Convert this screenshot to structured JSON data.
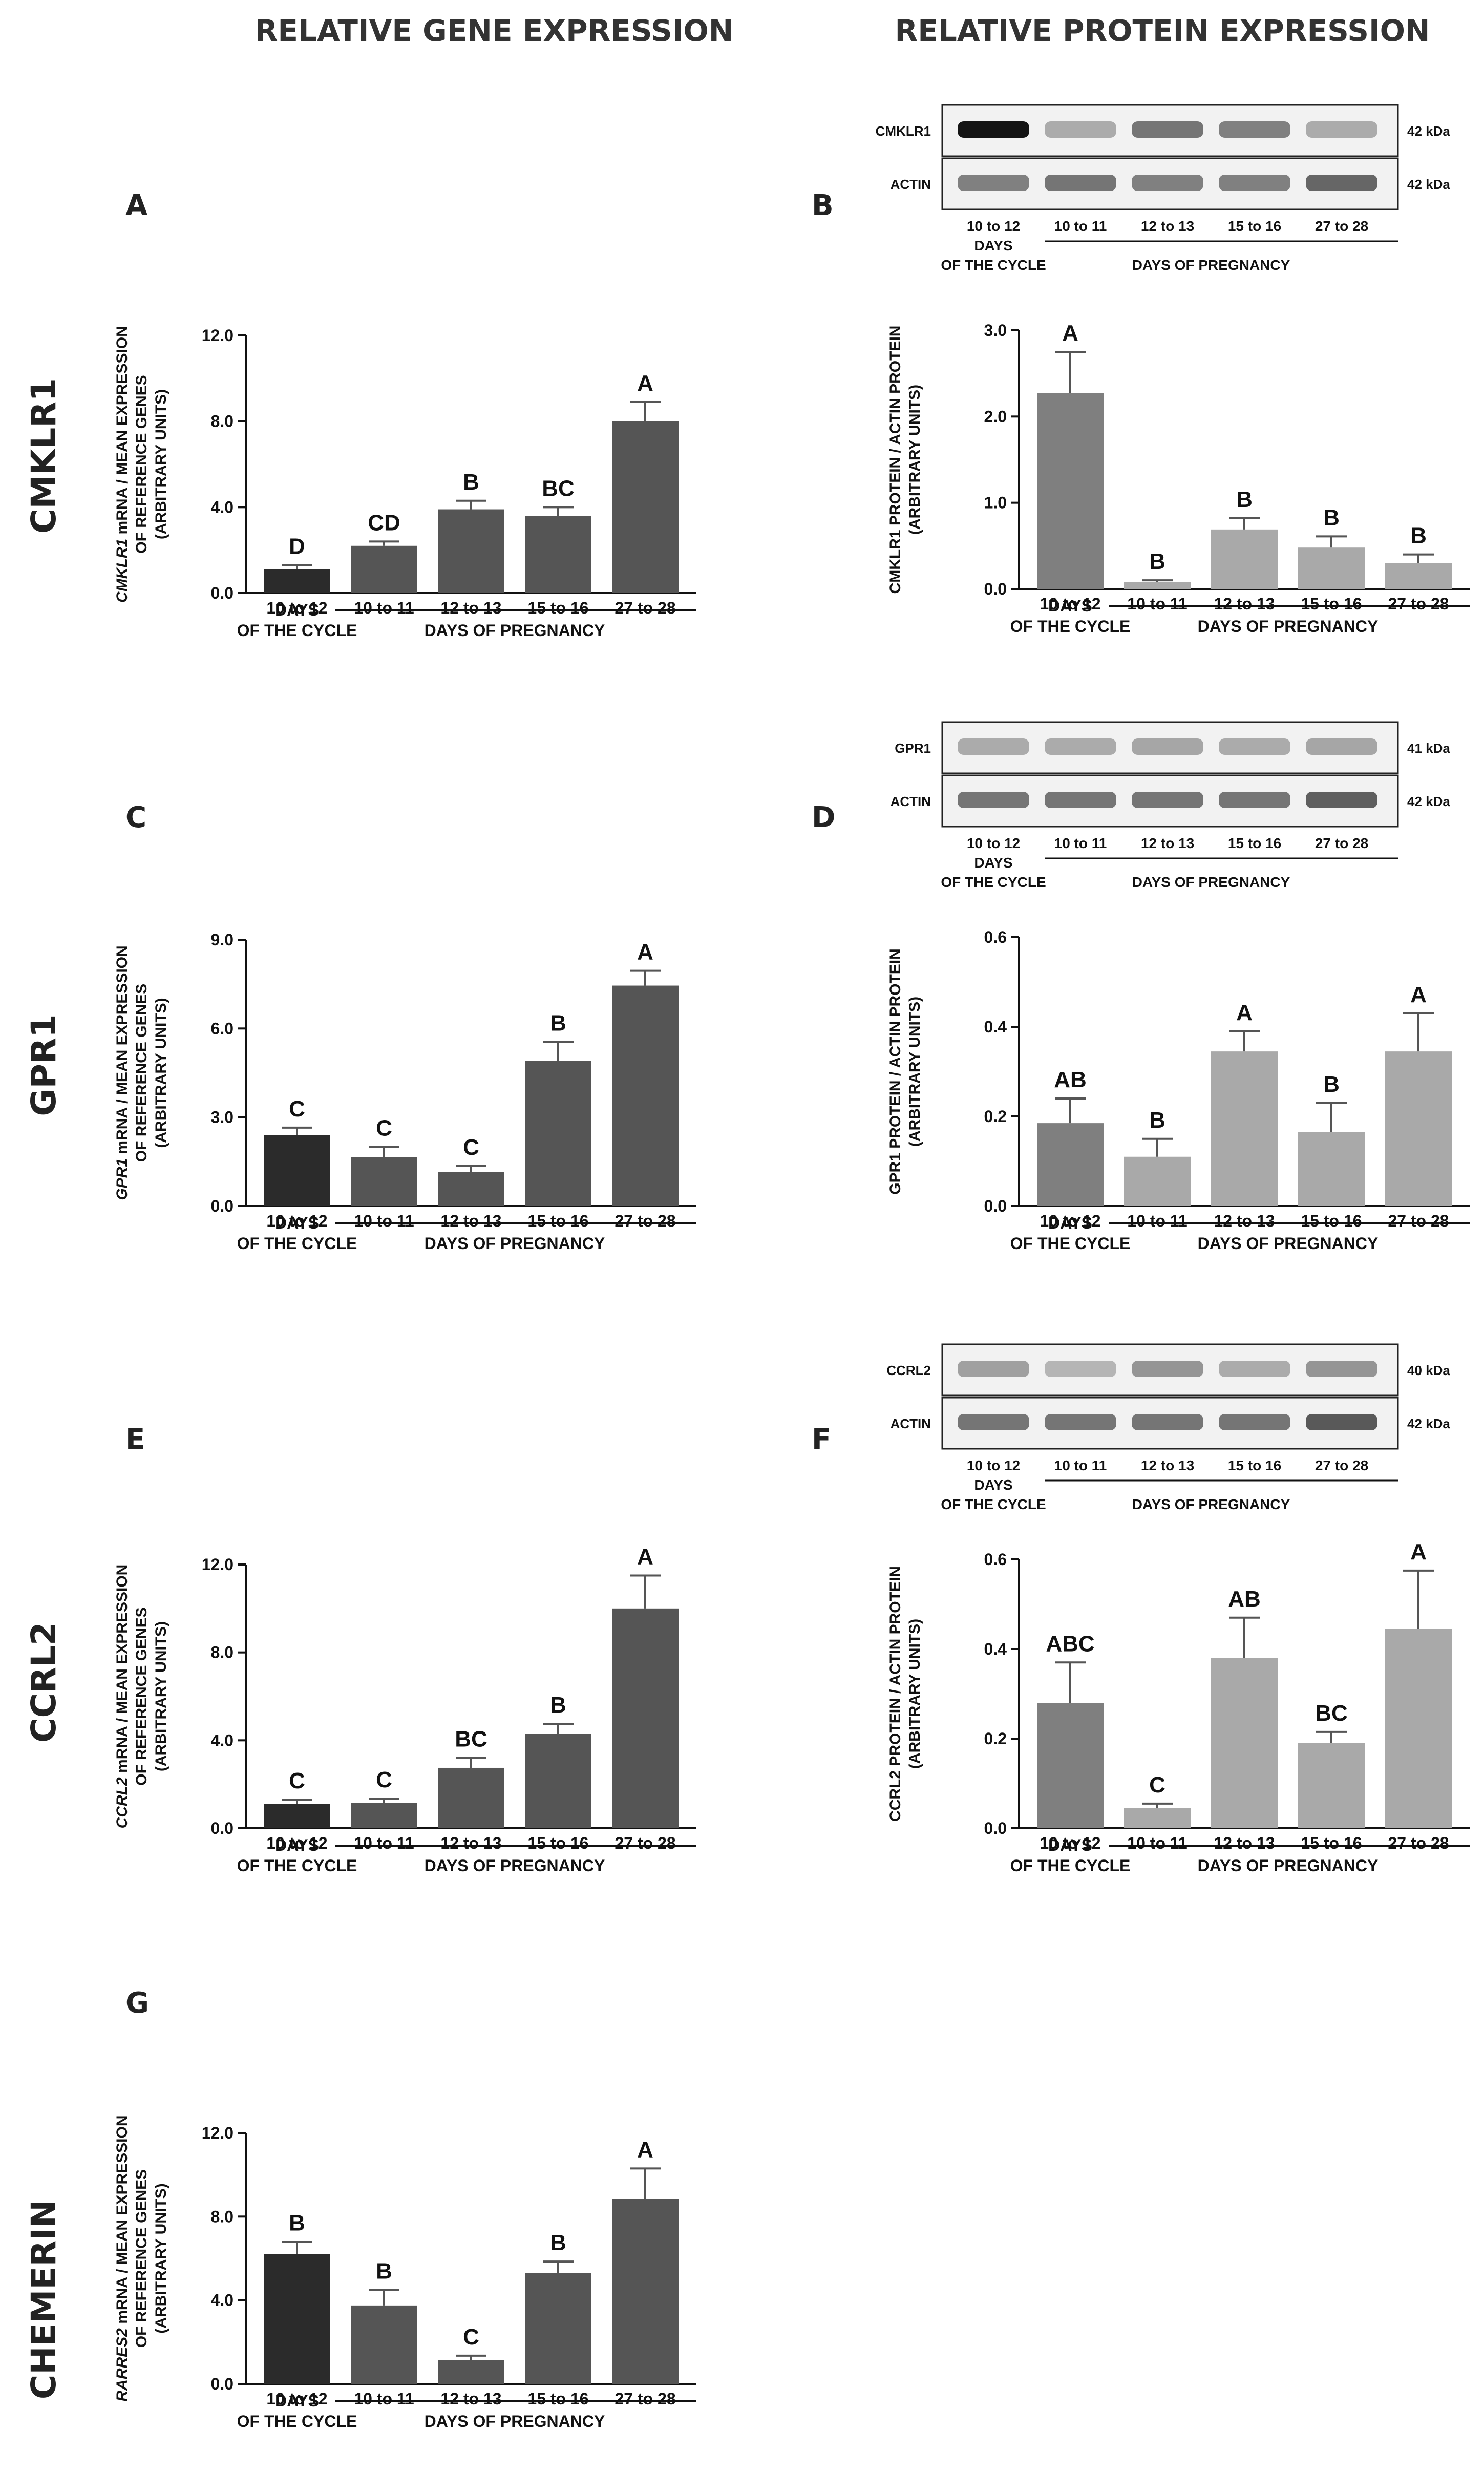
{
  "column_headers": [
    "RELATIVE GENE EXPRESSION",
    "RELATIVE PROTEIN EXPRESSION"
  ],
  "row_headers": [
    "CMKLR1",
    "GPR1",
    "CCRL2",
    "CHEMERIN"
  ],
  "x_groups": {
    "cycle_label_1": "DAYS",
    "cycle_label_2": "OF THE CYCLE",
    "pregnancy_label": "DAYS OF PREGNANCY"
  },
  "chart_data": [
    {
      "panel": "A",
      "type": "bar",
      "categories": [
        "10 to 12",
        "10 to 11",
        "12 to 13",
        "15 to 16",
        "27 to 28"
      ],
      "values": [
        1.1,
        2.2,
        3.9,
        3.6,
        8.0
      ],
      "errors": [
        0.2,
        0.2,
        0.4,
        0.4,
        0.9
      ],
      "sig_labels": [
        "D",
        "CD",
        "B",
        "BC",
        "A"
      ],
      "colors": [
        "#2b2b2b",
        "#555555",
        "#555555",
        "#555555",
        "#555555"
      ],
      "ylabel_italic": "CMKLR1",
      "ylabel_rest": " mRNA / MEAN EXPRESSION",
      "ylabel_line2": "OF REFERENCE GENES",
      "ylabel_line3": "(ARBITRARY UNITS)",
      "ylim": [
        0,
        12
      ],
      "yticks": [
        0,
        4,
        8,
        12
      ],
      "ytick_labels": [
        "0.0",
        "4.0",
        "8.0",
        "12.0"
      ]
    },
    {
      "panel": "B",
      "type": "bar",
      "categories": [
        "10 to 12",
        "10 to 11",
        "12 to 13",
        "15 to 16",
        "27 to 28"
      ],
      "values": [
        2.27,
        0.08,
        0.69,
        0.48,
        0.3
      ],
      "errors": [
        0.48,
        0.02,
        0.13,
        0.13,
        0.1
      ],
      "sig_labels": [
        "A",
        "B",
        "B",
        "B",
        "B"
      ],
      "colors": [
        "#7f7f7f",
        "#a9a9a9",
        "#a9a9a9",
        "#a9a9a9",
        "#a9a9a9"
      ],
      "ylabel_italic": "",
      "ylabel_rest": "CMKLR1 PROTEIN / ACTIN PROTEIN",
      "ylabel_line2": "(ARBITRARY UNITS)",
      "ylabel_line3": "",
      "ylim": [
        0,
        3
      ],
      "yticks": [
        0,
        1,
        2,
        3
      ],
      "ytick_labels": [
        "0.0",
        "1.0",
        "2.0",
        "3.0"
      ],
      "blot": {
        "target_label": "CMKLR1",
        "target_kda": "42 kDa",
        "actin_label": "ACTIN",
        "actin_kda": "42 kDa",
        "target_intensity": [
          1.0,
          0.3,
          0.55,
          0.5,
          0.3
        ],
        "actin_intensity": [
          0.5,
          0.55,
          0.5,
          0.5,
          0.62
        ]
      }
    },
    {
      "panel": "C",
      "type": "bar",
      "categories": [
        "10 to 12",
        "10 to 11",
        "12 to 13",
        "15 to 16",
        "27 to 28"
      ],
      "values": [
        2.4,
        1.65,
        1.15,
        4.9,
        7.45
      ],
      "errors": [
        0.25,
        0.35,
        0.2,
        0.65,
        0.5
      ],
      "sig_labels": [
        "C",
        "C",
        "C",
        "B",
        "A"
      ],
      "colors": [
        "#2b2b2b",
        "#555555",
        "#555555",
        "#555555",
        "#555555"
      ],
      "ylabel_italic": "GPR1",
      "ylabel_rest": " mRNA / MEAN EXPRESSION",
      "ylabel_line2": "OF REFERENCE GENES",
      "ylabel_line3": "(ARBITRARY UNITS)",
      "ylim": [
        0,
        9
      ],
      "yticks": [
        0,
        3,
        6,
        9
      ],
      "ytick_labels": [
        "0.0",
        "3.0",
        "6.0",
        "9.0"
      ]
    },
    {
      "panel": "D",
      "type": "bar",
      "categories": [
        "10 to 12",
        "10 to 11",
        "12 to 13",
        "15 to 16",
        "27 to 28"
      ],
      "values": [
        0.185,
        0.11,
        0.345,
        0.165,
        0.345
      ],
      "errors": [
        0.055,
        0.04,
        0.045,
        0.065,
        0.085
      ],
      "sig_labels": [
        "AB",
        "B",
        "A",
        "B",
        "A"
      ],
      "colors": [
        "#7f7f7f",
        "#a9a9a9",
        "#a9a9a9",
        "#a9a9a9",
        "#a9a9a9"
      ],
      "ylabel_italic": "",
      "ylabel_rest": "GPR1 PROTEIN / ACTIN PROTEIN",
      "ylabel_line2": "(ARBITRARY UNITS)",
      "ylabel_line3": "",
      "ylim": [
        0,
        0.6
      ],
      "yticks": [
        0,
        0.2,
        0.4,
        0.6
      ],
      "ytick_labels": [
        "0.0",
        "0.2",
        "0.4",
        "0.6"
      ],
      "blot": {
        "target_label": "GPR1",
        "target_kda": "41 kDa",
        "actin_label": "ACTIN",
        "actin_kda": "42 kDa",
        "target_intensity": [
          0.3,
          0.3,
          0.32,
          0.3,
          0.32
        ],
        "actin_intensity": [
          0.55,
          0.55,
          0.55,
          0.55,
          0.65
        ]
      }
    },
    {
      "panel": "E",
      "type": "bar",
      "categories": [
        "10 to 12",
        "10 to 11",
        "12 to 13",
        "15 to 16",
        "27 to 28"
      ],
      "values": [
        1.1,
        1.15,
        2.75,
        4.3,
        10.0
      ],
      "errors": [
        0.2,
        0.2,
        0.45,
        0.45,
        1.5
      ],
      "sig_labels": [
        "C",
        "C",
        "BC",
        "B",
        "A"
      ],
      "colors": [
        "#2b2b2b",
        "#555555",
        "#555555",
        "#555555",
        "#555555"
      ],
      "ylabel_italic": "CCRL2",
      "ylabel_rest": " mRNA / MEAN EXPRESSION",
      "ylabel_line2": "OF REFERENCE GENES",
      "ylabel_line3": "(ARBITRARY UNITS)",
      "ylim": [
        0,
        12
      ],
      "yticks": [
        0,
        4,
        8,
        12
      ],
      "ytick_labels": [
        "0.0",
        "4.0",
        "8.0",
        "12.0"
      ]
    },
    {
      "panel": "F",
      "type": "bar",
      "categories": [
        "10 to 12",
        "10 to 11",
        "12 to 13",
        "15 to 16",
        "27 to 28"
      ],
      "values": [
        0.28,
        0.045,
        0.38,
        0.19,
        0.445
      ],
      "errors": [
        0.09,
        0.01,
        0.09,
        0.025,
        0.13
      ],
      "sig_labels": [
        "ABC",
        "C",
        "AB",
        "BC",
        "A"
      ],
      "colors": [
        "#7f7f7f",
        "#a9a9a9",
        "#a9a9a9",
        "#a9a9a9",
        "#a9a9a9"
      ],
      "ylabel_italic": "",
      "ylabel_rest": "CCRL2 PROTEIN / ACTIN PROTEIN",
      "ylabel_line2": "(ARBITRARY UNITS)",
      "ylabel_line3": "",
      "ylim": [
        0,
        0.6
      ],
      "yticks": [
        0,
        0.2,
        0.4,
        0.6
      ],
      "ytick_labels": [
        "0.0",
        "0.2",
        "0.4",
        "0.6"
      ],
      "blot": {
        "target_label": "CCRL2",
        "target_kda": "40 kDa",
        "actin_label": "ACTIN",
        "actin_kda": "42 kDa",
        "target_intensity": [
          0.35,
          0.25,
          0.4,
          0.3,
          0.4
        ],
        "actin_intensity": [
          0.55,
          0.55,
          0.55,
          0.55,
          0.68
        ]
      }
    },
    {
      "panel": "G",
      "type": "bar",
      "categories": [
        "10 to 12",
        "10 to 11",
        "12 to 13",
        "15 to 16",
        "27 to 28"
      ],
      "values": [
        6.2,
        3.75,
        1.15,
        5.3,
        8.85
      ],
      "errors": [
        0.6,
        0.75,
        0.2,
        0.55,
        1.45
      ],
      "sig_labels": [
        "B",
        "B",
        "C",
        "B",
        "A"
      ],
      "colors": [
        "#2b2b2b",
        "#555555",
        "#555555",
        "#555555",
        "#555555"
      ],
      "ylabel_italic": "RARRES2",
      "ylabel_rest": " mRNA / MEAN EXPRESSION",
      "ylabel_line2": "OF REFERENCE GENES",
      "ylabel_line3": "(ARBITRARY UNITS)",
      "ylim": [
        0,
        12
      ],
      "yticks": [
        0,
        4,
        8,
        12
      ],
      "ytick_labels": [
        "0.0",
        "4.0",
        "8.0",
        "12.0"
      ]
    }
  ]
}
